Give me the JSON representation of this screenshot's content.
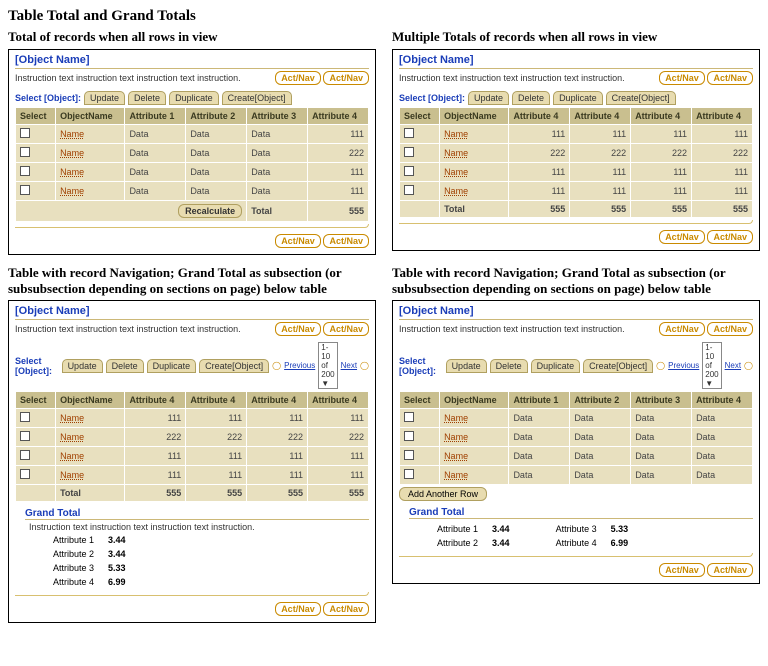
{
  "main_title": "Table Total and Grand Totals",
  "panel_header": "[Object Name]",
  "instruction": "Instruction text instruction text instruction text instruction.",
  "act_nav": "Act/Nav",
  "action_bar": {
    "select": "Select [Object]:",
    "update": "Update",
    "delete": "Delete",
    "duplicate": "Duplicate",
    "create": "Create[Object]"
  },
  "nav": {
    "previous": "Previous",
    "pager": "1-10 of 200",
    "next": "Next"
  },
  "col_total": "Total",
  "recalculate": "Recalculate",
  "add_another": "Add Another Row",
  "name_label": "Name",
  "q1": {
    "title": "Total of records when all rows in view",
    "headers": [
      "Select",
      "ObjectName",
      "Attribute 1",
      "Attribute 2",
      "Attribute 3",
      "Attribute 4"
    ],
    "rows": [
      [
        "Data",
        "Data",
        "Data",
        "111"
      ],
      [
        "Data",
        "Data",
        "Data",
        "222"
      ],
      [
        "Data",
        "Data",
        "Data",
        "111"
      ],
      [
        "Data",
        "Data",
        "Data",
        "111"
      ]
    ],
    "total": "555"
  },
  "q2": {
    "title": "Multiple Totals of records when all rows in view",
    "headers": [
      "Select",
      "ObjectName",
      "Attribute 4",
      "Attribute 4",
      "Attribute 4",
      "Attribute 4"
    ],
    "rows": [
      [
        "111",
        "111",
        "111",
        "111"
      ],
      [
        "222",
        "222",
        "222",
        "222"
      ],
      [
        "111",
        "111",
        "111",
        "111"
      ],
      [
        "111",
        "111",
        "111",
        "111"
      ]
    ],
    "totals": [
      "555",
      "555",
      "555",
      "555"
    ]
  },
  "q34_title": "Table with record Navigation; Grand Total as subsection (or subsubsection depending on sections on page) below table",
  "q3": {
    "headers": [
      "Select",
      "ObjectName",
      "Attribute 4",
      "Attribute 4",
      "Attribute 4",
      "Attribute 4"
    ],
    "rows": [
      [
        "111",
        "111",
        "111",
        "111"
      ],
      [
        "222",
        "222",
        "222",
        "222"
      ],
      [
        "111",
        "111",
        "111",
        "111"
      ],
      [
        "111",
        "111",
        "111",
        "111"
      ]
    ],
    "totals": [
      "555",
      "555",
      "555",
      "555"
    ],
    "grand_label": "Grand Total",
    "gt": [
      [
        "Attribute 1",
        "3.44"
      ],
      [
        "Attribute 2",
        "3.44"
      ],
      [
        "Attribute 3",
        "5.33"
      ],
      [
        "Attribute 4",
        "6.99"
      ]
    ]
  },
  "q4": {
    "headers": [
      "Select",
      "ObjectName",
      "Attribute 1",
      "Attribute 2",
      "Attribute 3",
      "Attribute 4"
    ],
    "rows": [
      [
        "Data",
        "Data",
        "Data",
        "Data"
      ],
      [
        "Data",
        "Data",
        "Data",
        "Data"
      ],
      [
        "Data",
        "Data",
        "Data",
        "Data"
      ],
      [
        "Data",
        "Data",
        "Data",
        "Data"
      ]
    ],
    "grand_label": "Grand Total",
    "gt_left": [
      [
        "Attribute 1",
        "3.44"
      ],
      [
        "Attribute 2",
        "3.44"
      ]
    ],
    "gt_right": [
      [
        "Attribute 3",
        "5.33"
      ],
      [
        "Attribute 4",
        "6.99"
      ]
    ]
  }
}
